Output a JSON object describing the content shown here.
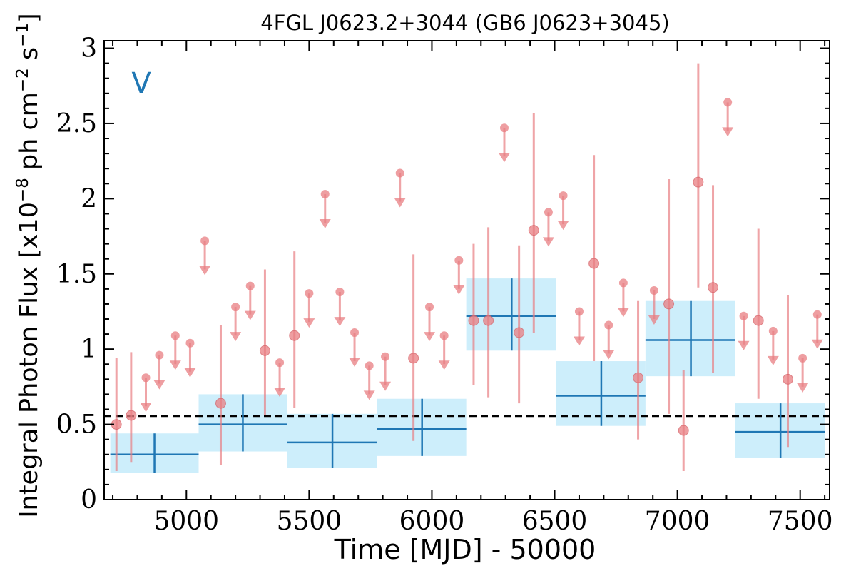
{
  "chart_data": {
    "type": "scatter",
    "title": "4FGL J0623.2+3044 (GB6 J0623+3045)",
    "panel_label": "V",
    "xlabel": "Time [MJD] - 50000",
    "ylabel": "Integral Photon Flux [x10^-8 ph cm^-2 s^-1]",
    "ylabel_parts": [
      "Integral Photon Flux [x10",
      "−8",
      " ph cm",
      "−2",
      " s",
      "−1",
      "]"
    ],
    "xlim": [
      4665,
      7620
    ],
    "ylim": [
      0,
      3.05
    ],
    "x_ticks": [
      5000,
      5500,
      6000,
      6500,
      7000,
      7500
    ],
    "y_ticks": [
      0,
      0.5,
      1,
      1.5,
      2,
      2.5,
      3
    ],
    "y_tick_labels": [
      "0",
      "0.5",
      "1",
      "1.5",
      "2",
      "2.5",
      "3"
    ],
    "mean_flux": 0.555,
    "colors": {
      "monthly": "#e87d82",
      "yearly_line": "#1f77b4",
      "yearly_band": "#cdeefb",
      "mean_line": "#000000"
    },
    "monthly_detections": [
      {
        "x": 4715,
        "y": 0.5,
        "lo": 0.19,
        "hi": 0.94
      },
      {
        "x": 4775,
        "y": 0.56,
        "lo": 0.25,
        "hi": 0.98
      },
      {
        "x": 5140,
        "y": 0.64,
        "lo": 0.23,
        "hi": 1.16
      },
      {
        "x": 5320,
        "y": 0.99,
        "lo": 0.56,
        "hi": 1.53
      },
      {
        "x": 5440,
        "y": 1.09,
        "lo": 0.61,
        "hi": 1.65
      },
      {
        "x": 5925,
        "y": 0.94,
        "lo": 0.39,
        "hi": 1.63
      },
      {
        "x": 6170,
        "y": 1.19,
        "lo": 0.76,
        "hi": 1.7
      },
      {
        "x": 6230,
        "y": 1.19,
        "lo": 0.68,
        "hi": 1.81
      },
      {
        "x": 6355,
        "y": 1.11,
        "lo": 0.64,
        "hi": 1.69
      },
      {
        "x": 6415,
        "y": 1.79,
        "lo": 1.11,
        "hi": 2.57
      },
      {
        "x": 6660,
        "y": 1.57,
        "lo": 0.92,
        "hi": 2.29
      },
      {
        "x": 6840,
        "y": 0.81,
        "lo": 0.4,
        "hi": 1.32
      },
      {
        "x": 6965,
        "y": 1.3,
        "lo": 0.57,
        "hi": 2.13
      },
      {
        "x": 7025,
        "y": 0.46,
        "lo": 0.19,
        "hi": 0.86
      },
      {
        "x": 7085,
        "y": 2.11,
        "lo": 1.41,
        "hi": 2.9
      },
      {
        "x": 7145,
        "y": 1.41,
        "lo": 0.84,
        "hi": 2.09
      },
      {
        "x": 7330,
        "y": 1.19,
        "lo": 0.67,
        "hi": 1.8
      },
      {
        "x": 7450,
        "y": 0.8,
        "lo": 0.35,
        "hi": 1.36
      }
    ],
    "monthly_upper_limits": [
      {
        "x": 4835,
        "y": 0.81
      },
      {
        "x": 4890,
        "y": 0.96
      },
      {
        "x": 4955,
        "y": 1.09
      },
      {
        "x": 5015,
        "y": 1.04
      },
      {
        "x": 5075,
        "y": 1.72
      },
      {
        "x": 5200,
        "y": 1.28
      },
      {
        "x": 5260,
        "y": 1.42
      },
      {
        "x": 5380,
        "y": 0.91
      },
      {
        "x": 5500,
        "y": 1.37
      },
      {
        "x": 5565,
        "y": 2.03
      },
      {
        "x": 5625,
        "y": 1.38
      },
      {
        "x": 5685,
        "y": 1.11
      },
      {
        "x": 5745,
        "y": 0.89
      },
      {
        "x": 5810,
        "y": 0.95
      },
      {
        "x": 5870,
        "y": 2.17
      },
      {
        "x": 5990,
        "y": 1.28
      },
      {
        "x": 6050,
        "y": 1.09
      },
      {
        "x": 6110,
        "y": 1.59
      },
      {
        "x": 6295,
        "y": 2.47
      },
      {
        "x": 6475,
        "y": 1.91
      },
      {
        "x": 6535,
        "y": 2.02
      },
      {
        "x": 6600,
        "y": 1.25
      },
      {
        "x": 6720,
        "y": 1.16
      },
      {
        "x": 6780,
        "y": 1.44
      },
      {
        "x": 6905,
        "y": 1.39
      },
      {
        "x": 7205,
        "y": 2.64
      },
      {
        "x": 7270,
        "y": 1.22
      },
      {
        "x": 7390,
        "y": 1.12
      },
      {
        "x": 7510,
        "y": 0.94
      },
      {
        "x": 7570,
        "y": 1.23
      }
    ],
    "yearly_bins": [
      {
        "x0": 4690,
        "x1": 5050,
        "xc": 4870,
        "y": 0.3,
        "lo": 0.18,
        "hi": 0.44
      },
      {
        "x0": 5050,
        "x1": 5410,
        "xc": 5230,
        "y": 0.5,
        "lo": 0.32,
        "hi": 0.7
      },
      {
        "x0": 5410,
        "x1": 5775,
        "xc": 5595,
        "y": 0.38,
        "lo": 0.21,
        "hi": 0.57
      },
      {
        "x0": 5775,
        "x1": 6140,
        "xc": 5960,
        "y": 0.47,
        "lo": 0.29,
        "hi": 0.67
      },
      {
        "x0": 6140,
        "x1": 6505,
        "xc": 6325,
        "y": 1.22,
        "lo": 0.99,
        "hi": 1.47
      },
      {
        "x0": 6505,
        "x1": 6870,
        "xc": 6690,
        "y": 0.69,
        "lo": 0.49,
        "hi": 0.92
      },
      {
        "x0": 6870,
        "x1": 7235,
        "xc": 7055,
        "y": 1.06,
        "lo": 0.82,
        "hi": 1.32
      },
      {
        "x0": 7235,
        "x1": 7600,
        "xc": 7420,
        "y": 0.45,
        "lo": 0.28,
        "hi": 0.64
      }
    ]
  }
}
